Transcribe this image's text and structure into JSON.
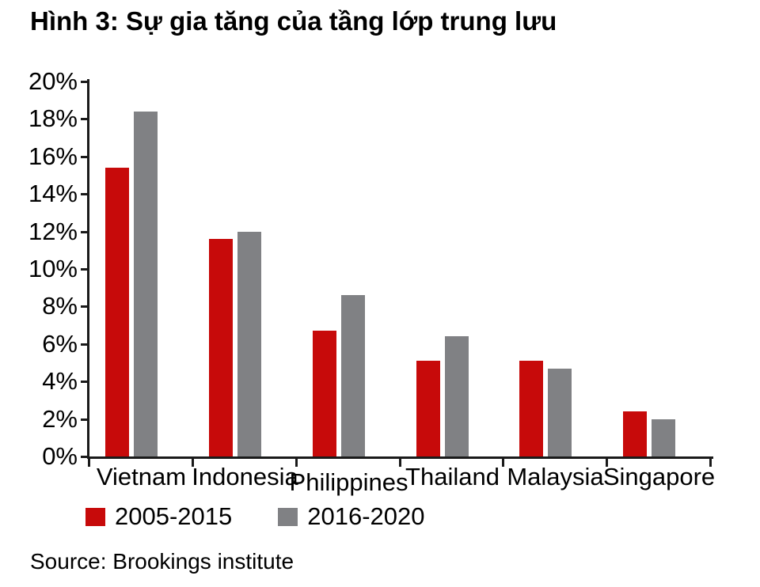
{
  "figure": {
    "source": "Source: Brookings institute"
  },
  "chart_data": {
    "type": "bar",
    "title": "Hình 3: Sự gia tăng của tầng lớp trung lưu",
    "categories": [
      "Vietnam",
      "Indonesia",
      "Philippines",
      "Thailand",
      "Malaysia",
      "Singapore"
    ],
    "series": [
      {
        "name": "2005-2015",
        "color": "#C70A0A",
        "values": [
          15.4,
          11.6,
          6.7,
          5.1,
          5.1,
          2.4
        ]
      },
      {
        "name": "2016-2020",
        "color": "#808184",
        "values": [
          18.4,
          12.0,
          8.6,
          6.4,
          4.7,
          2.0
        ]
      }
    ],
    "xlabel": "",
    "ylabel": "",
    "ylim": [
      0,
      20
    ],
    "ytick_step": 2,
    "ytick_suffix": "%",
    "grid": false,
    "legend_position": "bottom-left",
    "axis_color": "#1a1a1a"
  }
}
